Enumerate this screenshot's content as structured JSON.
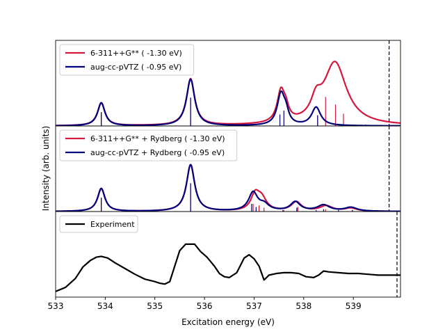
{
  "chart_data": {
    "type": "line",
    "xlabel": "Excitation energy (eV)",
    "ylabel": "Intensity (arb. units)",
    "xlim": [
      533,
      539.95
    ],
    "xticks": [
      "533",
      "534",
      "535",
      "536",
      "537",
      "538",
      "539"
    ],
    "colors": {
      "red": "#d6173d",
      "navy": "#00007d",
      "black": "#000000"
    },
    "panels": [
      {
        "ylim": [
          0,
          1.12
        ],
        "legend_position": "upper left",
        "ionization_lines": [
          {
            "x": 539.72,
            "color": "#d6173d"
          },
          {
            "x": 539.72,
            "color": "#00007d"
          }
        ],
        "series": [
          {
            "name": "6-311++G** ( -1.30 eV)",
            "color": "#d6173d",
            "peaks": [
              {
                "x": 533.92,
                "h": 0.3,
                "w": 0.09
              },
              {
                "x": 535.72,
                "h": 0.61,
                "w": 0.1
              },
              {
                "x": 537.54,
                "h": 0.4,
                "w": 0.09
              },
              {
                "x": 537.64,
                "h": 0.14,
                "w": 0.07
              },
              {
                "x": 538.25,
                "h": 0.22,
                "w": 0.12
              },
              {
                "x": 538.63,
                "h": 0.82,
                "w": 0.28
              }
            ],
            "sticks": [
              {
                "x": 533.92,
                "h": 0.18
              },
              {
                "x": 535.72,
                "h": 0.37
              },
              {
                "x": 538.28,
                "h": 0.14
              },
              {
                "x": 538.44,
                "h": 0.38
              },
              {
                "x": 538.64,
                "h": 0.28
              },
              {
                "x": 538.8,
                "h": 0.16
              },
              {
                "x": 539.25,
                "h": 0.02
              }
            ]
          },
          {
            "name": "aug-cc-pVTZ ( -0.95 eV)",
            "color": "#00007d",
            "peaks": [
              {
                "x": 533.92,
                "h": 0.3,
                "w": 0.09
              },
              {
                "x": 535.72,
                "h": 0.61,
                "w": 0.1
              },
              {
                "x": 537.54,
                "h": 0.4,
                "w": 0.09
              },
              {
                "x": 537.64,
                "h": 0.14,
                "w": 0.07
              },
              {
                "x": 538.25,
                "h": 0.24,
                "w": 0.11
              }
            ],
            "sticks": [
              {
                "x": 533.92,
                "h": 0.18
              },
              {
                "x": 535.72,
                "h": 0.37
              },
              {
                "x": 537.52,
                "h": 0.15
              },
              {
                "x": 537.6,
                "h": 0.2
              },
              {
                "x": 538.28,
                "h": 0.14
              }
            ]
          }
        ]
      },
      {
        "ylim": [
          0,
          1.12
        ],
        "legend_position": "upper left",
        "ionization_lines": [
          {
            "x": 539.72,
            "color": "#d6173d"
          },
          {
            "x": 539.72,
            "color": "#00007d"
          }
        ],
        "series": [
          {
            "name": "6-311++G** + Rydberg ( -1.30 eV)",
            "color": "#d6173d",
            "peaks": [
              {
                "x": 533.92,
                "h": 0.3,
                "w": 0.09
              },
              {
                "x": 535.72,
                "h": 0.61,
                "w": 0.1
              },
              {
                "x": 537.02,
                "h": 0.2,
                "w": 0.1
              },
              {
                "x": 537.15,
                "h": 0.16,
                "w": 0.12
              },
              {
                "x": 537.85,
                "h": 0.12,
                "w": 0.12
              },
              {
                "x": 538.45,
                "h": 0.07,
                "w": 0.15
              },
              {
                "x": 538.95,
                "h": 0.04,
                "w": 0.15
              }
            ],
            "sticks": [
              {
                "x": 533.92,
                "h": 0.18
              },
              {
                "x": 535.72,
                "h": 0.37
              },
              {
                "x": 536.98,
                "h": 0.1
              },
              {
                "x": 537.1,
                "h": 0.08
              },
              {
                "x": 537.2,
                "h": 0.05
              },
              {
                "x": 537.6,
                "h": 0.02
              },
              {
                "x": 537.88,
                "h": 0.06
              },
              {
                "x": 538.44,
                "h": 0.03
              },
              {
                "x": 538.98,
                "h": 0.02
              }
            ]
          },
          {
            "name": "aug-cc-pVTZ + Rydberg ( -0.95 eV)",
            "color": "#00007d",
            "peaks": [
              {
                "x": 533.92,
                "h": 0.3,
                "w": 0.09
              },
              {
                "x": 535.72,
                "h": 0.61,
                "w": 0.1
              },
              {
                "x": 536.98,
                "h": 0.24,
                "w": 0.11
              },
              {
                "x": 537.2,
                "h": 0.08,
                "w": 0.12
              },
              {
                "x": 537.83,
                "h": 0.12,
                "w": 0.12
              },
              {
                "x": 538.4,
                "h": 0.08,
                "w": 0.15
              },
              {
                "x": 538.95,
                "h": 0.05,
                "w": 0.15
              }
            ],
            "sticks": [
              {
                "x": 533.92,
                "h": 0.18
              },
              {
                "x": 535.72,
                "h": 0.37
              },
              {
                "x": 536.95,
                "h": 0.1
              },
              {
                "x": 537.04,
                "h": 0.06
              },
              {
                "x": 537.58,
                "h": 0.02
              },
              {
                "x": 537.86,
                "h": 0.05
              },
              {
                "x": 538.25,
                "h": 0.02
              },
              {
                "x": 538.4,
                "h": 0.03
              },
              {
                "x": 538.7,
                "h": 0.02
              },
              {
                "x": 538.98,
                "h": 0.02
              }
            ]
          }
        ]
      },
      {
        "ylim": [
          -0.05,
          1.0
        ],
        "legend_position": "upper left",
        "ionization_lines": [
          {
            "x": 539.88,
            "color": "#000000"
          }
        ],
        "series": [
          {
            "name": "Experiment",
            "color": "#000000",
            "points": [
              [
                533.0,
                0.02
              ],
              [
                533.2,
                0.07
              ],
              [
                533.4,
                0.18
              ],
              [
                533.55,
                0.32
              ],
              [
                533.7,
                0.4
              ],
              [
                533.82,
                0.44
              ],
              [
                533.92,
                0.45
              ],
              [
                534.05,
                0.43
              ],
              [
                534.2,
                0.37
              ],
              [
                534.4,
                0.3
              ],
              [
                534.6,
                0.23
              ],
              [
                534.8,
                0.17
              ],
              [
                535.0,
                0.14
              ],
              [
                535.1,
                0.12
              ],
              [
                535.2,
                0.11
              ],
              [
                535.3,
                0.14
              ],
              [
                535.4,
                0.33
              ],
              [
                535.5,
                0.52
              ],
              [
                535.62,
                0.6
              ],
              [
                535.8,
                0.6
              ],
              [
                535.92,
                0.51
              ],
              [
                536.05,
                0.44
              ],
              [
                536.2,
                0.33
              ],
              [
                536.3,
                0.24
              ],
              [
                536.4,
                0.2
              ],
              [
                536.5,
                0.19
              ],
              [
                536.65,
                0.25
              ],
              [
                536.8,
                0.43
              ],
              [
                536.9,
                0.47
              ],
              [
                537.0,
                0.42
              ],
              [
                537.1,
                0.33
              ],
              [
                537.2,
                0.16
              ],
              [
                537.3,
                0.22
              ],
              [
                537.45,
                0.24
              ],
              [
                537.6,
                0.25
              ],
              [
                537.75,
                0.25
              ],
              [
                537.9,
                0.24
              ],
              [
                538.05,
                0.2
              ],
              [
                538.2,
                0.19
              ],
              [
                538.3,
                0.22
              ],
              [
                538.4,
                0.27
              ],
              [
                538.5,
                0.26
              ],
              [
                538.7,
                0.25
              ],
              [
                538.9,
                0.24
              ],
              [
                539.1,
                0.24
              ],
              [
                539.3,
                0.23
              ],
              [
                539.5,
                0.22
              ],
              [
                539.7,
                0.22
              ],
              [
                539.95,
                0.22
              ]
            ]
          }
        ]
      }
    ]
  }
}
